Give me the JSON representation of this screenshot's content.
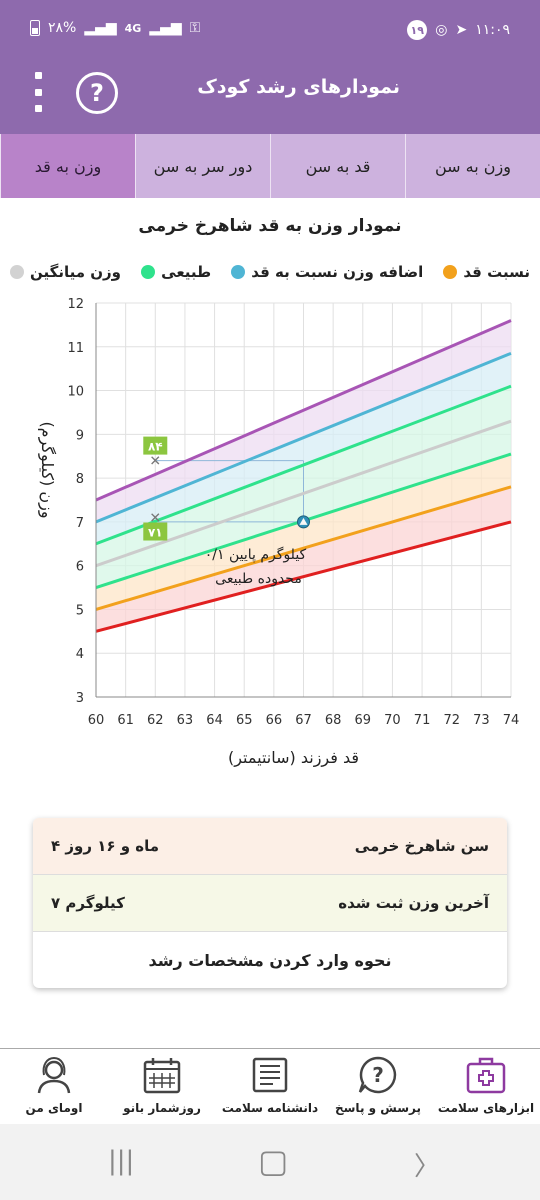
{
  "status": {
    "time": "۱۱:۰۹",
    "battery": "۲۸%",
    "network": "4G",
    "notif_count": "۱۹"
  },
  "appbar": {
    "title": "نمودارهای رشد کودک",
    "help_glyph": "?"
  },
  "tabs": [
    {
      "label": "وزن به سن",
      "active": false
    },
    {
      "label": "قد به سن",
      "active": false
    },
    {
      "label": "دور سر به سن",
      "active": false
    },
    {
      "label": "وزن به قد",
      "active": true
    }
  ],
  "chart_title": "نمودار وزن به قد شاهرخ خرمی",
  "legend": [
    {
      "label": "نسبت قد",
      "color": "#f2a11c"
    },
    {
      "label": "اضافه وزن نسبت به قد",
      "color": "#4fb5d4"
    },
    {
      "label": "طبیعی",
      "color": "#2fe28c"
    },
    {
      "label": "وزن میانگین",
      "color": "#d2d2d2"
    }
  ],
  "chart_data": {
    "type": "line",
    "xlabel": "قد فرزند (سانتیمتر)",
    "ylabel": "وزن (کیلوگرم)",
    "xlim": [
      60,
      74
    ],
    "ylim": [
      3,
      12
    ],
    "x_ticks": [
      60,
      61,
      62,
      63,
      64,
      65,
      66,
      67,
      68,
      69,
      70,
      71,
      72,
      73,
      74
    ],
    "y_ticks": [
      3,
      4,
      5,
      6,
      7,
      8,
      9,
      10,
      11,
      12
    ],
    "x": [
      60,
      74
    ],
    "series": [
      {
        "color": "#e02020",
        "values": [
          4.5,
          7.0
        ]
      },
      {
        "color": "#f2a11c",
        "values": [
          5.0,
          7.8
        ]
      },
      {
        "color": "#2fe28c",
        "values": [
          5.5,
          8.55
        ]
      },
      {
        "color": "#cccccc",
        "values": [
          6.0,
          9.3
        ]
      },
      {
        "color": "#2fe28c",
        "values": [
          6.5,
          10.1
        ]
      },
      {
        "color": "#4fb5d4",
        "values": [
          7.0,
          10.85
        ]
      },
      {
        "color": "#a855b5",
        "values": [
          7.5,
          11.6
        ]
      }
    ],
    "bands": [
      {
        "color": "#fbd4d4",
        "lower": 0,
        "upper": 1
      },
      {
        "color": "#fde6c8",
        "lower": 1,
        "upper": 2
      },
      {
        "color": "#d6f7e6",
        "lower": 2,
        "upper": 4
      },
      {
        "color": "#d7eef6",
        "lower": 4,
        "upper": 5
      },
      {
        "color": "#eedcf1",
        "lower": 5,
        "upper": 6
      }
    ],
    "measurement": {
      "x": 67,
      "y": 7.0,
      "note_line1": "۰/۱ کیلوگرم پایین",
      "note_line2": "محدوده طبیعی"
    },
    "ref_points": [
      {
        "x": 62,
        "y": 8.4,
        "label": "۸۴"
      },
      {
        "x": 62,
        "y": 7.1,
        "label": "۷۱"
      }
    ]
  },
  "info_card": {
    "age_label": "سن شاهرخ خرمی",
    "age_value": "۴ ماه و ۱۶ روز",
    "weight_label": "آخرین وزن ثبت شده",
    "weight_value": "۷ کیلوگرم",
    "howto_label": "نحوه وارد کردن مشخصات رشد"
  },
  "bottom_nav": [
    {
      "label": "ابزارهای سلامت",
      "icon": "medical-kit-icon",
      "active": true
    },
    {
      "label": "پرسش و پاسخ",
      "icon": "question-bubble-icon",
      "active": false
    },
    {
      "label": "دانشنامه سلامت",
      "icon": "book-icon",
      "active": false
    },
    {
      "label": "روزشمار بانو",
      "icon": "calendar-icon",
      "active": false
    },
    {
      "label": "اومای من",
      "icon": "profile-woman-icon",
      "active": false
    }
  ]
}
